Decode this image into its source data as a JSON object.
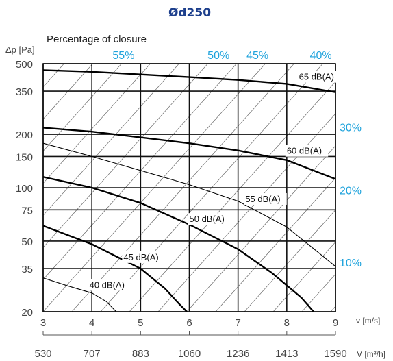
{
  "chart_data": {
    "type": "line",
    "title": "Ød250",
    "subtitle": "Percentage of closure",
    "ylabel": "Δp [Pa]",
    "xlabel": "v [m/s]",
    "x2label": "V [m³/h]",
    "yscale": "log",
    "ylim": [
      20,
      500
    ],
    "xlim": [
      3,
      9
    ],
    "yticks": [
      20,
      35,
      50,
      75,
      100,
      150,
      200,
      350,
      500
    ],
    "xticks": [
      3,
      4,
      5,
      6,
      7,
      8,
      9
    ],
    "x2ticks": [
      "530",
      "707",
      "883",
      "1060",
      "1236",
      "1413",
      "1590"
    ],
    "grid": true,
    "closure_top": [
      {
        "label": "55%",
        "v": 4.65
      },
      {
        "label": "50%",
        "v": 6.6
      },
      {
        "label": "45%",
        "v": 7.4
      },
      {
        "label": "40%",
        "v": 8.7
      }
    ],
    "closure_right": [
      {
        "label": "30%",
        "y": 220
      },
      {
        "label": "20%",
        "y": 97
      },
      {
        "label": "10%",
        "y": 38
      }
    ],
    "series": [
      {
        "name": "65 dB(A)",
        "weight": "heavy",
        "points": [
          [
            3,
            460
          ],
          [
            4,
            450
          ],
          [
            5,
            435
          ],
          [
            6,
            420
          ],
          [
            7,
            405
          ],
          [
            8,
            385
          ],
          [
            9,
            345
          ]
        ]
      },
      {
        "name": "60 dB(A)",
        "weight": "heavy",
        "points": [
          [
            3,
            218
          ],
          [
            4,
            207
          ],
          [
            5,
            192
          ],
          [
            6,
            178
          ],
          [
            7,
            162
          ],
          [
            8,
            143
          ],
          [
            9,
            112
          ]
        ]
      },
      {
        "name": "55 dB(A)",
        "weight": "light",
        "points": [
          [
            3,
            178
          ],
          [
            4,
            150
          ],
          [
            5,
            125
          ],
          [
            6,
            104
          ],
          [
            7,
            84
          ],
          [
            8,
            60
          ],
          [
            8.7,
            42
          ],
          [
            9,
            36
          ]
        ]
      },
      {
        "name": "50 dB(A)",
        "weight": "heavy",
        "points": [
          [
            3,
            115
          ],
          [
            4,
            100
          ],
          [
            5,
            82
          ],
          [
            6,
            62
          ],
          [
            7,
            45
          ],
          [
            7.7,
            33
          ],
          [
            8.3,
            24
          ],
          [
            8.55,
            20
          ]
        ]
      },
      {
        "name": "45 dB(A)",
        "weight": "heavy",
        "points": [
          [
            3,
            61
          ],
          [
            4,
            48
          ],
          [
            5,
            35
          ],
          [
            5.5,
            27
          ],
          [
            5.8,
            22
          ],
          [
            5.95,
            20
          ]
        ]
      },
      {
        "name": "40 dB(A)",
        "weight": "light",
        "points": [
          [
            3,
            31
          ],
          [
            3.5,
            28
          ],
          [
            4,
            25.5
          ],
          [
            4.3,
            22.8
          ],
          [
            4.5,
            20
          ]
        ]
      }
    ]
  }
}
